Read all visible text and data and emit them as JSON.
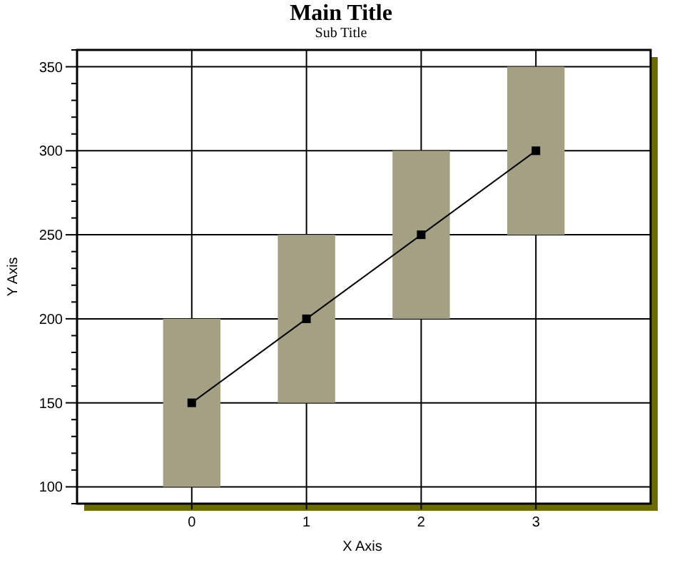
{
  "chart_data": {
    "type": "bar",
    "title": "Main Title",
    "subtitle": "Sub Title",
    "xlabel": "X Axis",
    "ylabel": "Y Axis",
    "xlim": [
      -1,
      4
    ],
    "xticks": [
      0,
      1,
      2,
      3
    ],
    "ylim": [
      90,
      360
    ],
    "yticks": [
      {
        "value": 90,
        "label": null
      },
      100,
      {
        "value": 110,
        "label": null
      },
      {
        "value": 120,
        "label": null
      },
      {
        "value": 130,
        "label": null
      },
      {
        "value": 140,
        "label": null
      },
      150,
      {
        "value": 160,
        "label": null
      },
      {
        "value": 170,
        "label": null
      },
      {
        "value": 180,
        "label": null
      },
      {
        "value": 190,
        "label": null
      },
      200,
      {
        "value": 210,
        "label": null
      },
      {
        "value": 220,
        "label": null
      },
      {
        "value": 230,
        "label": null
      },
      {
        "value": 240,
        "label": null
      },
      250,
      {
        "value": 260,
        "label": null
      },
      {
        "value": 270,
        "label": null
      },
      {
        "value": 280,
        "label": null
      },
      {
        "value": 290,
        "label": null
      },
      300,
      {
        "value": 310,
        "label": null
      },
      {
        "value": 320,
        "label": null
      },
      {
        "value": 330,
        "label": null
      },
      {
        "value": 340,
        "label": null
      },
      350,
      {
        "value": 360,
        "label": null
      }
    ],
    "grid": true,
    "series": [
      {
        "color": "#a3a083",
        "x": [
          0,
          1,
          2,
          3
        ],
        "base": [
          100,
          150,
          200,
          250
        ],
        "values": [
          100,
          100,
          100,
          100
        ]
      },
      {
        "type": "line",
        "color": "#000000",
        "x": [
          0,
          1,
          2,
          3
        ],
        "values": [
          150,
          200,
          250,
          300
        ],
        "marker": "square",
        "line_style": "solid"
      }
    ]
  }
}
